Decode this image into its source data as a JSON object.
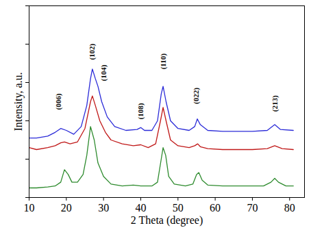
{
  "chart_data": {
    "type": "line",
    "x_label": "2 Theta (degree)",
    "y_label": "Intensity, a.u.",
    "xlim": [
      10,
      84
    ],
    "xticks": [
      10,
      20,
      30,
      40,
      50,
      60,
      70,
      80
    ],
    "ylim": [
      0,
      100
    ],
    "yticks": [
      0,
      20,
      40,
      60,
      80,
      100
    ],
    "tick_labels": "x",
    "series": [
      {
        "color": "#2b2bd8",
        "x": [
          10,
          12,
          15,
          17,
          18.5,
          20,
          22,
          24,
          25.5,
          26.5,
          27,
          27.8,
          28.5,
          29.5,
          31,
          33,
          36,
          39,
          40,
          41,
          43,
          44.5,
          45.5,
          46,
          46.8,
          48,
          50,
          53,
          54.5,
          55.2,
          56,
          58,
          62,
          66,
          70,
          74,
          76,
          77.5,
          81
        ],
        "values": [
          31,
          31,
          32,
          34,
          36,
          35,
          33,
          37,
          48,
          62,
          67,
          62,
          58,
          50,
          42,
          37,
          35,
          35.5,
          36.5,
          35,
          35,
          40,
          54,
          58,
          50,
          40,
          36,
          35,
          37,
          41,
          38,
          35,
          34.5,
          34.5,
          34.5,
          35,
          38,
          35.5,
          35
        ]
      },
      {
        "color": "#c01818",
        "x": [
          10,
          12,
          15,
          17,
          18.5,
          19.5,
          21,
          23,
          25,
          26.5,
          27,
          27.8,
          29,
          30.5,
          32,
          35,
          38,
          40,
          42,
          44,
          45.3,
          46,
          46.8,
          48,
          50,
          53,
          54.5,
          55.3,
          56,
          58,
          62,
          66,
          70,
          74,
          76,
          78,
          81
        ],
        "values": [
          26,
          25,
          26,
          27,
          28.5,
          29,
          28,
          29,
          36,
          50,
          53,
          48,
          40,
          34,
          30,
          28,
          27,
          27.5,
          26,
          28,
          40,
          47,
          40,
          30,
          27,
          26,
          27,
          28,
          26.5,
          25.5,
          25,
          25,
          25,
          25.5,
          27,
          25.5,
          25
        ]
      },
      {
        "color": "#2e8b2e",
        "x": [
          10,
          12,
          15,
          17,
          18.5,
          19.5,
          20.5,
          21.5,
          23,
          24.5,
          25.5,
          26.5,
          27.5,
          28.5,
          30,
          32,
          35,
          38,
          40,
          43,
          44.5,
          45.5,
          46,
          46.7,
          47.5,
          49,
          52,
          54,
          55,
          55.6,
          56.5,
          58,
          62,
          66,
          70,
          73,
          75,
          76,
          77,
          79,
          81
        ],
        "values": [
          5,
          5,
          5.5,
          6,
          8,
          14.5,
          12,
          8,
          8,
          12,
          22,
          37,
          30,
          18,
          11,
          7,
          6,
          6.5,
          6,
          6,
          8,
          20,
          26,
          22,
          11,
          7,
          6,
          7,
          12,
          13,
          9,
          6.5,
          6,
          6,
          6,
          6,
          8,
          10,
          8,
          6,
          6
        ]
      }
    ],
    "annotations": [
      {
        "text": "(006)",
        "x": 18,
        "y": 50
      },
      {
        "text": "(102)",
        "x": 27,
        "y": 76
      },
      {
        "text": "(104)",
        "x": 30,
        "y": 65
      },
      {
        "text": "(108)",
        "x": 40,
        "y": 45
      },
      {
        "text": "(110)",
        "x": 46,
        "y": 71
      },
      {
        "text": "(022)",
        "x": 55,
        "y": 53
      },
      {
        "text": "(213)",
        "x": 76,
        "y": 49
      }
    ]
  }
}
